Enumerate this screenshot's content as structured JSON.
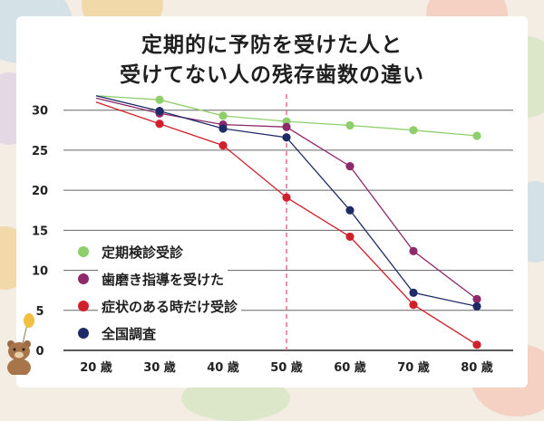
{
  "title_lines": [
    "定期的に予防を受けた人と",
    "受けてない人の残存歯数の違い"
  ],
  "colors": {
    "green": "#8fcf6b",
    "purple": "#8e2a6a",
    "red": "#d0202a",
    "navy": "#1f2b66",
    "guide": "#e05a7a"
  },
  "legend": [
    {
      "label": "定期検診受診",
      "color": "#8fcf6b"
    },
    {
      "label": "歯磨き指導を受けた",
      "color": "#8e2a6a"
    },
    {
      "label": "症状のある時だけ受診",
      "color": "#d0202a"
    },
    {
      "label": "全国調査",
      "color": "#1f2b66"
    }
  ],
  "chart_data": {
    "type": "line",
    "x": [
      20,
      30,
      40,
      50,
      60,
      70,
      80
    ],
    "x_tick_labels": [
      "20 歳",
      "30 歳",
      "40 歳",
      "50 歳",
      "60 歳",
      "70 歳",
      "80 歳"
    ],
    "y_ticks": [
      0,
      5,
      10,
      15,
      20,
      25,
      30
    ],
    "ylim": [
      0,
      32
    ],
    "reference_line_x": 50,
    "series": [
      {
        "name": "定期検診受診",
        "color": "#8fcf6b",
        "values": [
          31.8,
          31.3,
          29.3,
          28.6,
          28.1,
          27.5,
          26.8
        ],
        "start_marker": false
      },
      {
        "name": "歯磨き指導を受けた",
        "color": "#8e2a6a",
        "values": [
          31.5,
          29.6,
          28.2,
          27.9,
          23.0,
          12.4,
          6.4
        ],
        "start_marker": false
      },
      {
        "name": "症状のある時だけ受診",
        "color": "#d0202a",
        "values": [
          31.0,
          28.3,
          25.6,
          19.1,
          14.2,
          5.7,
          0.7
        ],
        "start_marker": false
      },
      {
        "name": "全国調査",
        "color": "#1f2b66",
        "values": [
          31.8,
          29.9,
          27.7,
          26.6,
          17.5,
          7.2,
          5.5
        ],
        "start_marker": false
      }
    ]
  }
}
